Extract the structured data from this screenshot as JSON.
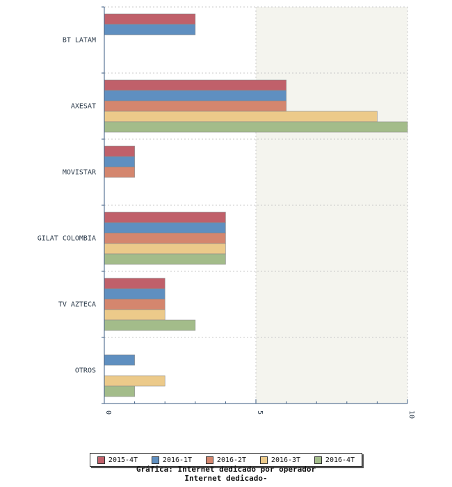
{
  "chart_data": {
    "type": "bar",
    "orientation": "horizontal",
    "categories": [
      "BT LATAM",
      "AXESAT",
      "MOVISTAR",
      "GILAT COLOMBIA",
      "TV AZTECA",
      "OTROS"
    ],
    "series": [
      {
        "name": "2015-4T",
        "color": "#c0606a",
        "values": [
          3,
          6,
          1,
          4,
          2,
          null
        ]
      },
      {
        "name": "2016-1T",
        "color": "#5f8fc0",
        "values": [
          3,
          6,
          1,
          4,
          2,
          1
        ]
      },
      {
        "name": "2016-2T",
        "color": "#d4866e",
        "values": [
          null,
          6,
          1,
          4,
          2,
          null
        ]
      },
      {
        "name": "2016-3T",
        "color": "#ecca8a",
        "values": [
          null,
          9,
          null,
          4,
          2,
          2
        ]
      },
      {
        "name": "2016-4T",
        "color": "#a3bc8a",
        "values": [
          null,
          10,
          null,
          4,
          3,
          1
        ]
      }
    ],
    "xlim": [
      0,
      10
    ],
    "ticks": [
      "0",
      "5",
      "10"
    ],
    "minor_ticks": [
      1,
      2,
      3,
      4,
      6,
      7,
      8,
      9
    ],
    "grid": true,
    "legend_position": "bottom"
  },
  "caption": {
    "line1": "Gráfica: Internet dedicado por operador",
    "line2": "Internet dedicado-"
  }
}
